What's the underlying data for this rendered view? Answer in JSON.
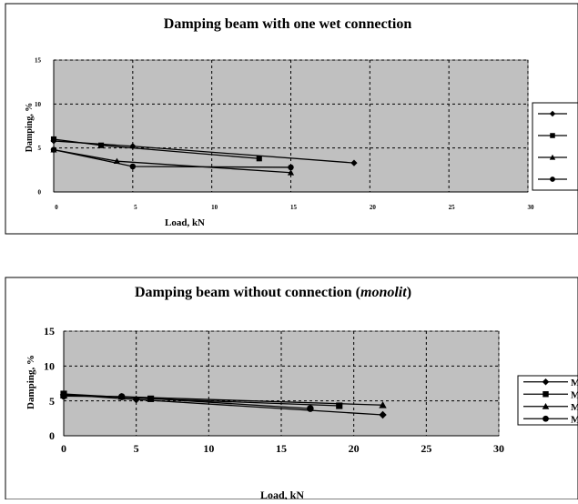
{
  "chart_data": [
    {
      "type": "line",
      "title": "Damping beam with one wet connection",
      "xlabel": "Load, kN",
      "ylabel": "Damping, %",
      "xlim": [
        0,
        30
      ],
      "ylim": [
        0,
        15
      ],
      "xticks": [
        "0",
        "5",
        "10",
        "15",
        "20",
        "25",
        "30"
      ],
      "yticks": [
        "0",
        "5",
        "10",
        "15"
      ],
      "grid": true,
      "legend": "right",
      "plot_bg": "#c0c0c0",
      "series": [
        {
          "marker": "diamond",
          "points": [
            [
              0,
              5.8
            ],
            [
              5,
              5.2
            ],
            [
              19,
              3.3
            ]
          ]
        },
        {
          "marker": "square",
          "points": [
            [
              0,
              6.0
            ],
            [
              3,
              5.3
            ],
            [
              13,
              3.8
            ]
          ]
        },
        {
          "marker": "triangle",
          "points": [
            [
              0,
              4.8
            ],
            [
              4,
              3.5
            ],
            [
              15,
              2.2
            ]
          ]
        },
        {
          "marker": "circle",
          "points": [
            [
              0,
              4.8
            ],
            [
              5,
              2.9
            ],
            [
              15,
              2.8
            ]
          ]
        }
      ]
    },
    {
      "type": "line",
      "title": "Damping beam without connection (",
      "title_italic": "monolit",
      "title_end": ")",
      "xlabel": "Load, kN",
      "ylabel": "Damping, %",
      "xlim": [
        0,
        30
      ],
      "ylim": [
        0,
        15
      ],
      "xticks": [
        "0",
        "5",
        "10",
        "15",
        "20",
        "25",
        "30"
      ],
      "yticks": [
        "0",
        "5",
        "10",
        "15"
      ],
      "grid": true,
      "legend": "right",
      "legend_labels": [
        "M",
        "M",
        "M",
        "M"
      ],
      "plot_bg": "#c0c0c0",
      "series": [
        {
          "marker": "diamond",
          "points": [
            [
              0,
              5.9
            ],
            [
              5,
              5.2
            ],
            [
              22,
              3.0
            ]
          ]
        },
        {
          "marker": "square",
          "points": [
            [
              0,
              6.0
            ],
            [
              6,
              5.3
            ],
            [
              19,
              4.3
            ]
          ]
        },
        {
          "marker": "triangle",
          "points": [
            [
              0,
              5.8
            ],
            [
              4,
              5.6
            ],
            [
              22,
              4.4
            ]
          ]
        },
        {
          "marker": "circle",
          "points": [
            [
              0,
              5.7
            ],
            [
              4,
              5.6
            ],
            [
              17,
              3.9
            ]
          ]
        }
      ]
    }
  ]
}
